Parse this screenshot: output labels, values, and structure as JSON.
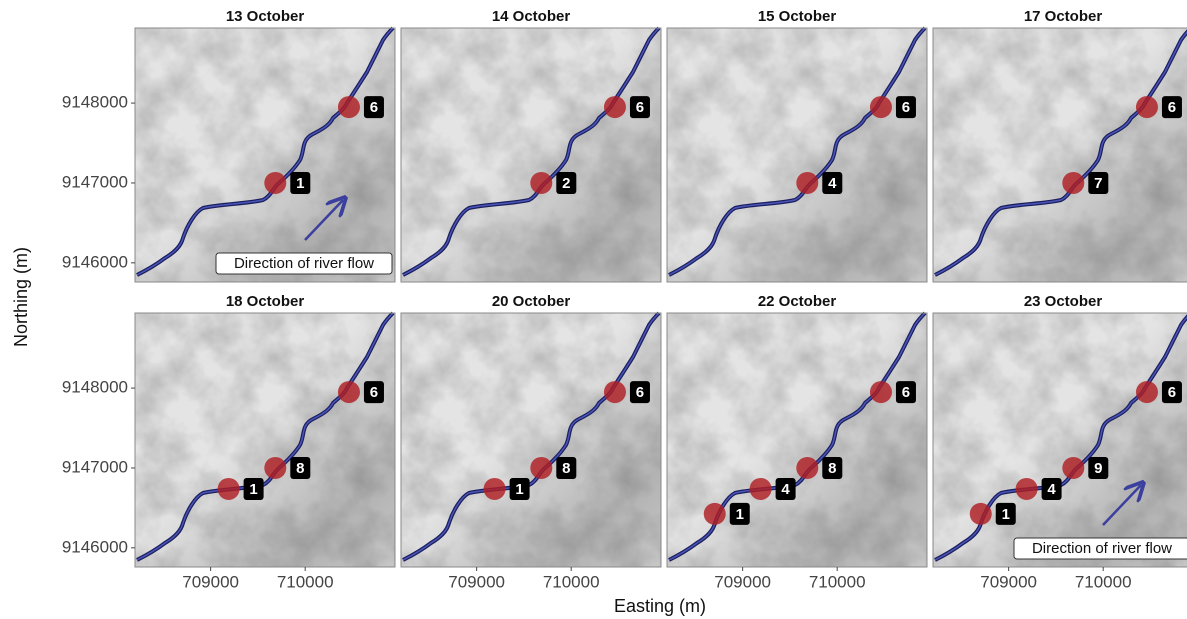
{
  "chart_data": {
    "type": "scatter",
    "xlabel": "Easting (m)",
    "ylabel": "Northing (m)",
    "xlim": [
      708200,
      710950
    ],
    "ylim": [
      9145760,
      9148940
    ],
    "xticks": [
      709000,
      710000
    ],
    "yticks": [
      9146000,
      9147000,
      9148000
    ],
    "color": "#b01e23",
    "facets": [
      {
        "title": "13 October",
        "x": [
          710463,
          709684
        ],
        "y": [
          9147950,
          9147000
        ],
        "values": [
          6,
          1
        ],
        "annotation": "Direction of river flow"
      },
      {
        "title": "14 October",
        "x": [
          710463,
          709684
        ],
        "y": [
          9147950,
          9147000
        ],
        "values": [
          6,
          2
        ]
      },
      {
        "title": "15 October",
        "x": [
          710463,
          709684
        ],
        "y": [
          9147950,
          9147000
        ],
        "values": [
          6,
          4
        ]
      },
      {
        "title": "17 October",
        "x": [
          710463,
          709684
        ],
        "y": [
          9147950,
          9147000
        ],
        "values": [
          6,
          7
        ]
      },
      {
        "title": "18 October",
        "x": [
          710463,
          709684,
          709190
        ],
        "y": [
          9147950,
          9147000,
          9146737
        ],
        "values": [
          6,
          8,
          1
        ]
      },
      {
        "title": "20 October",
        "x": [
          710463,
          709684,
          709190
        ],
        "y": [
          9147950,
          9147000,
          9146737
        ],
        "values": [
          6,
          8,
          1
        ]
      },
      {
        "title": "22 October",
        "x": [
          710463,
          709684,
          709190,
          708705
        ],
        "y": [
          9147950,
          9147000,
          9146737,
          9146425
        ],
        "values": [
          6,
          8,
          4,
          1
        ]
      },
      {
        "title": "23 October",
        "x": [
          710463,
          709684,
          709190,
          708705
        ],
        "y": [
          9147950,
          9147000,
          9146737,
          9146425
        ],
        "values": [
          6,
          9,
          4,
          1
        ],
        "annotation": "Direction of river flow"
      }
    ]
  }
}
